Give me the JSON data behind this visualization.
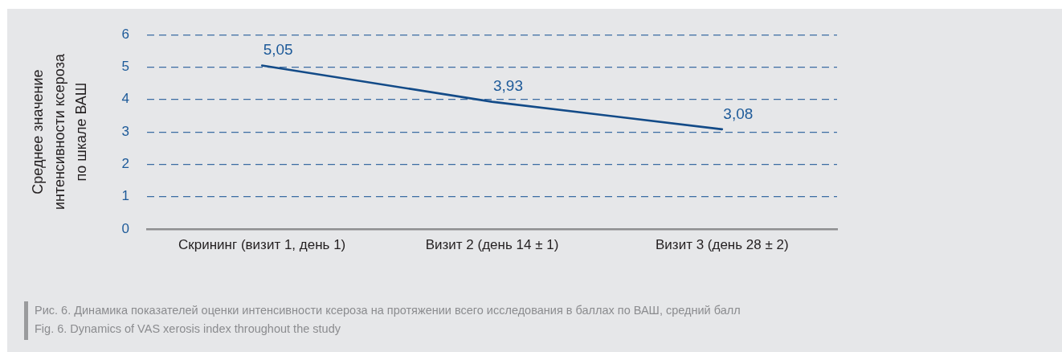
{
  "chart_data": {
    "type": "line",
    "categories": [
      "Скрининг (визит 1, день 1)",
      "Визит 2 (день 14 ± 1)",
      "Визит 3 (день 28 ± 2)"
    ],
    "values": [
      5.05,
      3.93,
      3.08
    ],
    "value_labels": [
      "5,05",
      "3,93",
      "3,08"
    ],
    "color": "#134b88",
    "ylabel": "Среднее значение интенсивности ксероза по шкале ВАШ",
    "ylim": [
      0,
      6
    ],
    "yticks": [
      0,
      1,
      2,
      3,
      4,
      5,
      6
    ],
    "grid": "y",
    "line_style": "solid",
    "marker": "none",
    "annotations": [
      "Рис. 6. Динамика показателей оценки интенсивности ксероза на протяжении всего исследования в баллах по ВАШ, средний балл",
      "Fig. 6. Dynamics of VAS xerosis index throughout the study"
    ]
  }
}
